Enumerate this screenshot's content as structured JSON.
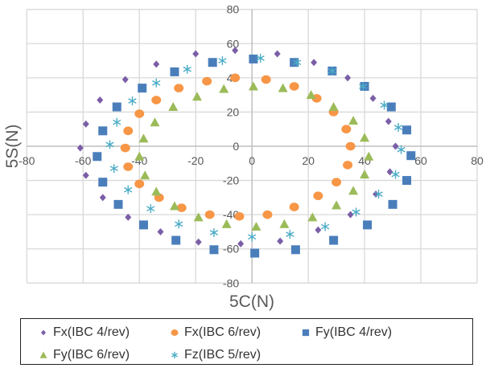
{
  "chart_data": {
    "type": "scatter",
    "xlabel": "5C(N)",
    "ylabel": "5S(N)",
    "xlim": [
      -80,
      80
    ],
    "ylim": [
      -80,
      80
    ],
    "xticks": [
      -80,
      -60,
      -40,
      -20,
      0,
      20,
      40,
      60,
      80
    ],
    "yticks": [
      -80,
      -60,
      -40,
      -20,
      0,
      20,
      40,
      60,
      80
    ],
    "grid": true,
    "legend_position": "bottom",
    "series": [
      {
        "name": "Fx(IBC 4/rev)",
        "marker": "diamond",
        "color": "#7b5ea7",
        "points": [
          [
            -61,
            -1
          ],
          [
            -59,
            13
          ],
          [
            -54,
            27
          ],
          [
            -45,
            39
          ],
          [
            -34,
            48
          ],
          [
            -20,
            54
          ],
          [
            -6,
            56
          ],
          [
            9,
            54
          ],
          [
            22,
            49
          ],
          [
            34,
            40
          ],
          [
            43,
            28
          ],
          [
            48.5,
            14.5
          ],
          [
            51,
            0
          ],
          [
            49,
            -15
          ],
          [
            44,
            -28
          ],
          [
            35,
            -40
          ],
          [
            23.5,
            -49
          ],
          [
            10,
            -55.5
          ],
          [
            -4,
            -57
          ],
          [
            -19,
            -56
          ],
          [
            -32.5,
            -50
          ],
          [
            -44,
            -41.5
          ],
          [
            -53,
            -30
          ],
          [
            -59,
            -17
          ]
        ]
      },
      {
        "name": "Fx(IBC 6/rev)",
        "marker": "circle",
        "color": "#f79646",
        "points": [
          [
            -45,
            -1
          ],
          [
            -44,
            9
          ],
          [
            -40,
            19
          ],
          [
            -34,
            27
          ],
          [
            -26,
            34
          ],
          [
            -16,
            38
          ],
          [
            -6,
            40
          ],
          [
            5,
            39
          ],
          [
            15,
            35
          ],
          [
            23,
            28
          ],
          [
            29,
            20
          ],
          [
            33.5,
            10
          ],
          [
            35,
            0
          ],
          [
            34,
            -11
          ],
          [
            30,
            -21
          ],
          [
            23.5,
            -29
          ],
          [
            15,
            -35.5
          ],
          [
            5.5,
            -40
          ],
          [
            -4.5,
            -41
          ],
          [
            -15,
            -40
          ],
          [
            -25,
            -36
          ],
          [
            -33,
            -30
          ],
          [
            -40,
            -22
          ],
          [
            -44,
            -12
          ]
        ]
      },
      {
        "name": "Fy(IBC 4/rev)",
        "marker": "square",
        "color": "#4a7ebb",
        "points": [
          [
            -55,
            -6
          ],
          [
            -53,
            9
          ],
          [
            -48,
            23
          ],
          [
            -39,
            34
          ],
          [
            -27.5,
            43.5
          ],
          [
            -14,
            49
          ],
          [
            0.5,
            51
          ],
          [
            15,
            49
          ],
          [
            28.5,
            44
          ],
          [
            40,
            35
          ],
          [
            49.5,
            23
          ],
          [
            55,
            9.5
          ],
          [
            56.5,
            -5.5
          ],
          [
            55,
            -20
          ],
          [
            50,
            -34
          ],
          [
            41,
            -46
          ],
          [
            29,
            -55
          ],
          [
            15.5,
            -60.5
          ],
          [
            1,
            -62.5
          ],
          [
            -13.5,
            -60.5
          ],
          [
            -27,
            -55
          ],
          [
            -38.5,
            -46
          ],
          [
            -47.5,
            -34
          ],
          [
            -53,
            -21
          ]
        ]
      },
      {
        "name": "Fy(IBC 6/rev)",
        "marker": "triangle",
        "color": "#9bbb59",
        "points": [
          [
            -40,
            -6
          ],
          [
            -38.5,
            4.5
          ],
          [
            -34.5,
            14
          ],
          [
            -28,
            23
          ],
          [
            -19.5,
            29
          ],
          [
            -10,
            33.5
          ],
          [
            0.5,
            35
          ],
          [
            11,
            34
          ],
          [
            21,
            30
          ],
          [
            29,
            23
          ],
          [
            36,
            15
          ],
          [
            40,
            5
          ],
          [
            41.5,
            -6
          ],
          [
            40,
            -16.5
          ],
          [
            36,
            -26
          ],
          [
            30,
            -34.5
          ],
          [
            21.5,
            -41.5
          ],
          [
            11.5,
            -45.5
          ],
          [
            1.5,
            -47
          ],
          [
            -9,
            -45.5
          ],
          [
            -19,
            -41.5
          ],
          [
            -27.5,
            -35
          ],
          [
            -34,
            -26.5
          ],
          [
            -38,
            -17
          ]
        ]
      },
      {
        "name": "Fz(IBC 5/rev)",
        "marker": "asterisk",
        "color": "#4bacc6",
        "points": [
          [
            -50.5,
            1
          ],
          [
            -48,
            14
          ],
          [
            -42.5,
            26.5
          ],
          [
            -34,
            37
          ],
          [
            -23,
            45
          ],
          [
            -10.5,
            50
          ],
          [
            3,
            51.5
          ],
          [
            16,
            49
          ],
          [
            28.5,
            44
          ],
          [
            39.5,
            35
          ],
          [
            47,
            24
          ],
          [
            52,
            11
          ],
          [
            53,
            -2
          ],
          [
            51,
            -16.5
          ],
          [
            45,
            -28
          ],
          [
            37,
            -38.5
          ],
          [
            26,
            -47
          ],
          [
            13.5,
            -51.5
          ],
          [
            0,
            -53
          ],
          [
            -13.5,
            -50.5
          ],
          [
            -26,
            -45.5
          ],
          [
            -36,
            -36.5
          ],
          [
            -44,
            -25.5
          ],
          [
            -49,
            -13
          ]
        ]
      }
    ]
  }
}
